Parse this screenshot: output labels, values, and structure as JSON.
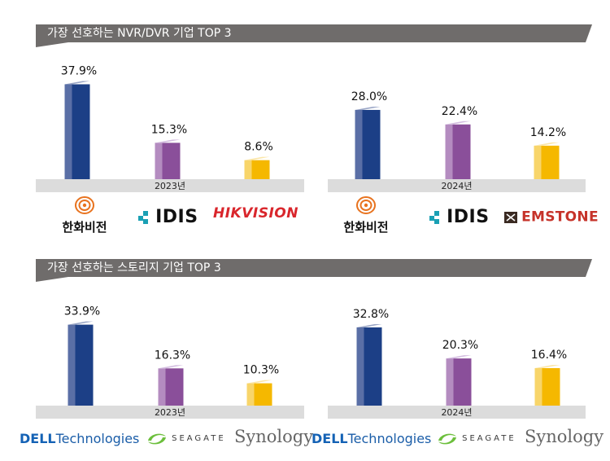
{
  "sections": [
    {
      "title": "가장 선호하는 NVR/DVR 기업 TOP 3"
    },
    {
      "title": "가장 선호하는 스토리지 기업 TOP 3"
    }
  ],
  "colors": {
    "blue": "#1c3f86",
    "purple": "#8a4f9a",
    "yellow": "#f5b800",
    "band": "#dcdcdc",
    "header": "#6f6c6b"
  },
  "chart_data": [
    {
      "type": "bar",
      "group": "NVR/DVR",
      "xlabel": "2023년",
      "categories": [
        "한화비전",
        "IDIS",
        "HIKVISION"
      ],
      "values": [
        37.9,
        15.3,
        8.6
      ],
      "labels": [
        "37.9%",
        "15.3%",
        "8.6%"
      ]
    },
    {
      "type": "bar",
      "group": "NVR/DVR",
      "xlabel": "2024년",
      "categories": [
        "한화비전",
        "IDIS",
        "EMSTONE"
      ],
      "values": [
        28.0,
        22.4,
        14.2
      ],
      "labels": [
        "28.0%",
        "22.4%",
        "14.2%"
      ]
    },
    {
      "type": "bar",
      "group": "스토리지",
      "xlabel": "2023년",
      "categories": [
        "DELL Technologies",
        "SEAGATE",
        "Synology"
      ],
      "values": [
        33.9,
        16.3,
        10.3
      ],
      "labels": [
        "33.9%",
        "16.3%",
        "10.3%"
      ]
    },
    {
      "type": "bar",
      "group": "스토리지",
      "xlabel": "2024년",
      "categories": [
        "DELL Technologies",
        "SEAGATE",
        "Synology"
      ],
      "values": [
        32.8,
        20.3,
        16.4
      ],
      "labels": [
        "32.8%",
        "20.3%",
        "16.4%"
      ]
    }
  ],
  "logos": {
    "hanwha": {
      "label": "한화비전",
      "icon": "hanwha-swirl-icon"
    },
    "idis": {
      "label": "IDIS",
      "icon": "idis-squares-icon"
    },
    "hikvision": {
      "label": "HIKVISION"
    },
    "emstone": {
      "label": "EMSTONE",
      "icon": "emstone-mark-icon"
    },
    "dell": {
      "brand": "DELL",
      "suffix": "Technologies"
    },
    "seagate": {
      "label": "SEAGATE",
      "icon": "seagate-swirl-icon"
    },
    "synology": {
      "label": "Synology"
    }
  }
}
